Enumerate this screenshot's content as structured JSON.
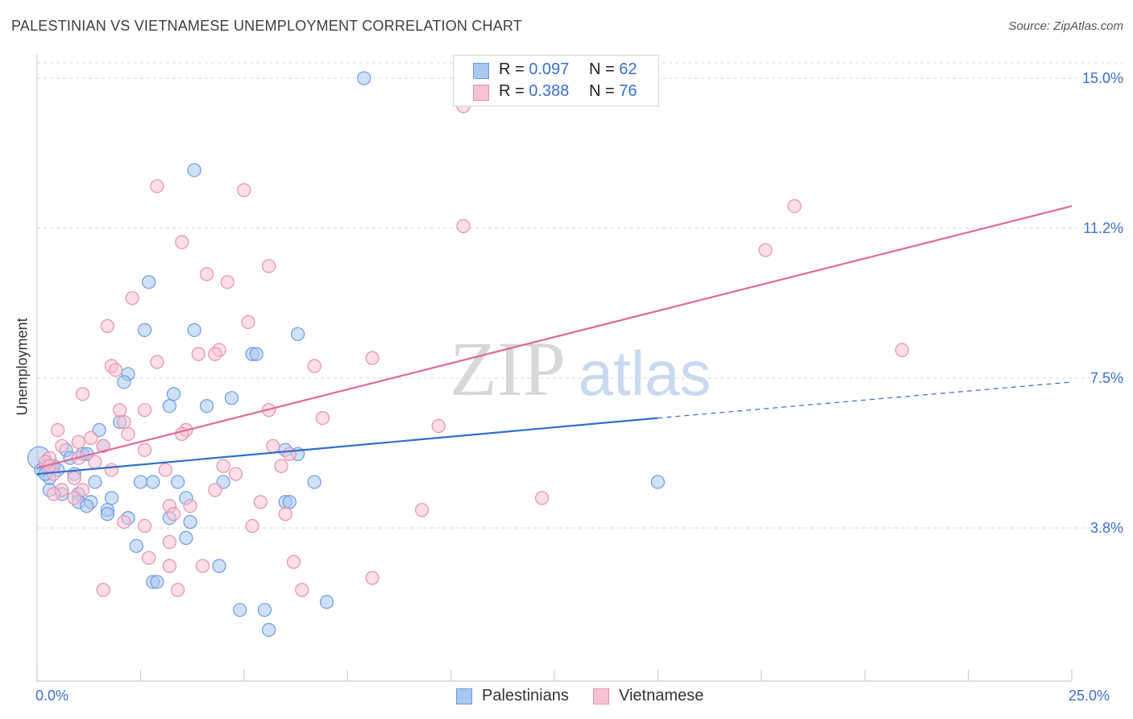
{
  "title": "PALESTINIAN VS VIETNAMESE UNEMPLOYMENT CORRELATION CHART",
  "source": "Source: ZipAtlas.com",
  "watermark": {
    "zip": "ZIP",
    "atlas": "atlas"
  },
  "legend": {
    "palestinians": {
      "r_label": "R = ",
      "r_value": "0.097",
      "n_label": "N = ",
      "n_value": "62"
    },
    "vietnamese": {
      "r_label": "R = ",
      "r_value": "0.388",
      "n_label": "N = ",
      "n_value": "76"
    }
  },
  "bottom_legend": {
    "palestinians": "Palestinians",
    "vietnamese": "Vietnamese"
  },
  "colors": {
    "palestinians_fill": "#a9c8f0",
    "palestinians_stroke": "#6a9be0",
    "palestinians_line": "#2f6fcb",
    "vietnamese_fill": "#f7c3d3",
    "vietnamese_stroke": "#e98fae",
    "vietnamese_line": "#e06b94",
    "axis_text": "#3a6fd1",
    "grid": "#d9d9d9"
  },
  "chart_data": {
    "type": "scatter",
    "title": "PALESTINIAN VS VIETNAMESE UNEMPLOYMENT CORRELATION CHART",
    "xlabel": "",
    "ylabel": "Unemployment",
    "xlim": [
      0,
      25
    ],
    "ylim": [
      0,
      15.5
    ],
    "x_tick_labels": [
      {
        "value": 0,
        "label": "0.0%"
      },
      {
        "value": 25,
        "label": "25.0%"
      }
    ],
    "y_tick_labels": [
      {
        "value": 15.0,
        "label": "15.0%"
      },
      {
        "value": 11.25,
        "label": "11.2%"
      },
      {
        "value": 7.5,
        "label": "7.5%"
      },
      {
        "value": 3.75,
        "label": "3.8%"
      }
    ],
    "series": [
      {
        "name": "Palestinians",
        "points": [
          [
            7.9,
            15.0
          ],
          [
            3.8,
            12.7
          ],
          [
            2.7,
            9.9
          ],
          [
            3.8,
            8.7
          ],
          [
            2.6,
            8.7
          ],
          [
            6.3,
            8.6
          ],
          [
            5.2,
            8.1
          ],
          [
            5.3,
            8.1
          ],
          [
            2.2,
            7.6
          ],
          [
            2.1,
            7.4
          ],
          [
            3.3,
            7.1
          ],
          [
            4.7,
            7.0
          ],
          [
            3.2,
            6.8
          ],
          [
            4.1,
            6.8
          ],
          [
            2.0,
            6.4
          ],
          [
            1.5,
            6.2
          ],
          [
            1.6,
            5.8
          ],
          [
            0.7,
            5.7
          ],
          [
            1.1,
            5.6
          ],
          [
            1.2,
            5.6
          ],
          [
            6.0,
            5.7
          ],
          [
            6.3,
            5.6
          ],
          [
            0.8,
            5.5
          ],
          [
            0.4,
            5.3
          ],
          [
            0.2,
            5.3
          ],
          [
            0.5,
            5.2
          ],
          [
            0.9,
            5.1
          ],
          [
            0.3,
            5.0
          ],
          [
            1.4,
            4.9
          ],
          [
            2.5,
            4.9
          ],
          [
            2.8,
            4.9
          ],
          [
            3.4,
            4.9
          ],
          [
            4.5,
            4.9
          ],
          [
            6.7,
            4.9
          ],
          [
            15.0,
            4.9
          ],
          [
            0.3,
            4.7
          ],
          [
            0.6,
            4.6
          ],
          [
            1.0,
            4.6
          ],
          [
            1.8,
            4.5
          ],
          [
            3.6,
            4.5
          ],
          [
            1.0,
            4.4
          ],
          [
            1.3,
            4.4
          ],
          [
            6.0,
            4.4
          ],
          [
            6.1,
            4.4
          ],
          [
            1.2,
            4.3
          ],
          [
            1.7,
            4.2
          ],
          [
            1.7,
            4.1
          ],
          [
            2.2,
            4.0
          ],
          [
            3.2,
            4.0
          ],
          [
            3.7,
            3.9
          ],
          [
            3.6,
            3.5
          ],
          [
            2.4,
            3.3
          ],
          [
            4.4,
            2.8
          ],
          [
            2.8,
            2.4
          ],
          [
            2.9,
            2.4
          ],
          [
            7.0,
            1.9
          ],
          [
            4.9,
            1.7
          ],
          [
            5.5,
            1.7
          ],
          [
            5.6,
            1.2
          ],
          [
            0.05,
            5.5
          ],
          [
            0.1,
            5.2
          ],
          [
            0.2,
            5.1
          ]
        ],
        "trend": {
          "x": [
            0,
            15,
            25
          ],
          "y": [
            5.1,
            6.5,
            7.4
          ]
        }
      },
      {
        "name": "Vietnamese",
        "points": [
          [
            10.3,
            14.3
          ],
          [
            2.9,
            12.3
          ],
          [
            5.0,
            12.2
          ],
          [
            18.3,
            11.8
          ],
          [
            10.3,
            11.3
          ],
          [
            3.5,
            10.9
          ],
          [
            17.6,
            10.7
          ],
          [
            5.6,
            10.3
          ],
          [
            4.1,
            10.1
          ],
          [
            4.6,
            9.9
          ],
          [
            2.3,
            9.5
          ],
          [
            5.1,
            8.9
          ],
          [
            1.7,
            8.8
          ],
          [
            20.9,
            8.2
          ],
          [
            4.4,
            8.2
          ],
          [
            3.9,
            8.1
          ],
          [
            4.3,
            8.1
          ],
          [
            8.1,
            8.0
          ],
          [
            2.9,
            7.9
          ],
          [
            6.7,
            7.8
          ],
          [
            1.8,
            7.8
          ],
          [
            1.9,
            7.7
          ],
          [
            1.1,
            7.1
          ],
          [
            2.6,
            6.7
          ],
          [
            2.0,
            6.7
          ],
          [
            5.6,
            6.7
          ],
          [
            6.9,
            6.5
          ],
          [
            2.1,
            6.4
          ],
          [
            9.7,
            6.3
          ],
          [
            3.6,
            6.2
          ],
          [
            0.5,
            6.2
          ],
          [
            3.5,
            6.1
          ],
          [
            2.2,
            6.1
          ],
          [
            1.3,
            6.0
          ],
          [
            1.0,
            5.9
          ],
          [
            0.6,
            5.8
          ],
          [
            5.7,
            5.8
          ],
          [
            1.6,
            5.8
          ],
          [
            2.6,
            5.7
          ],
          [
            6.1,
            5.6
          ],
          [
            1.0,
            5.5
          ],
          [
            1.4,
            5.4
          ],
          [
            0.3,
            5.5
          ],
          [
            4.5,
            5.3
          ],
          [
            5.9,
            5.3
          ],
          [
            3.1,
            5.2
          ],
          [
            4.8,
            5.1
          ],
          [
            1.8,
            5.2
          ],
          [
            0.4,
            5.1
          ],
          [
            0.9,
            5.0
          ],
          [
            0.6,
            4.7
          ],
          [
            1.1,
            4.7
          ],
          [
            4.3,
            4.7
          ],
          [
            0.4,
            4.6
          ],
          [
            0.9,
            4.5
          ],
          [
            12.2,
            4.5
          ],
          [
            5.4,
            4.4
          ],
          [
            3.2,
            4.3
          ],
          [
            3.7,
            4.3
          ],
          [
            9.3,
            4.2
          ],
          [
            6.0,
            4.1
          ],
          [
            3.3,
            4.1
          ],
          [
            2.1,
            3.9
          ],
          [
            2.6,
            3.8
          ],
          [
            5.2,
            3.8
          ],
          [
            3.2,
            3.4
          ],
          [
            6.2,
            2.9
          ],
          [
            2.7,
            3.0
          ],
          [
            4.0,
            2.8
          ],
          [
            3.2,
            2.8
          ],
          [
            8.1,
            2.5
          ],
          [
            1.6,
            2.2
          ],
          [
            3.4,
            2.2
          ],
          [
            6.4,
            2.2
          ],
          [
            0.2,
            5.4
          ],
          [
            0.3,
            5.3
          ]
        ],
        "trend": {
          "x": [
            0,
            25
          ],
          "y": [
            5.25,
            11.8
          ]
        }
      }
    ]
  }
}
